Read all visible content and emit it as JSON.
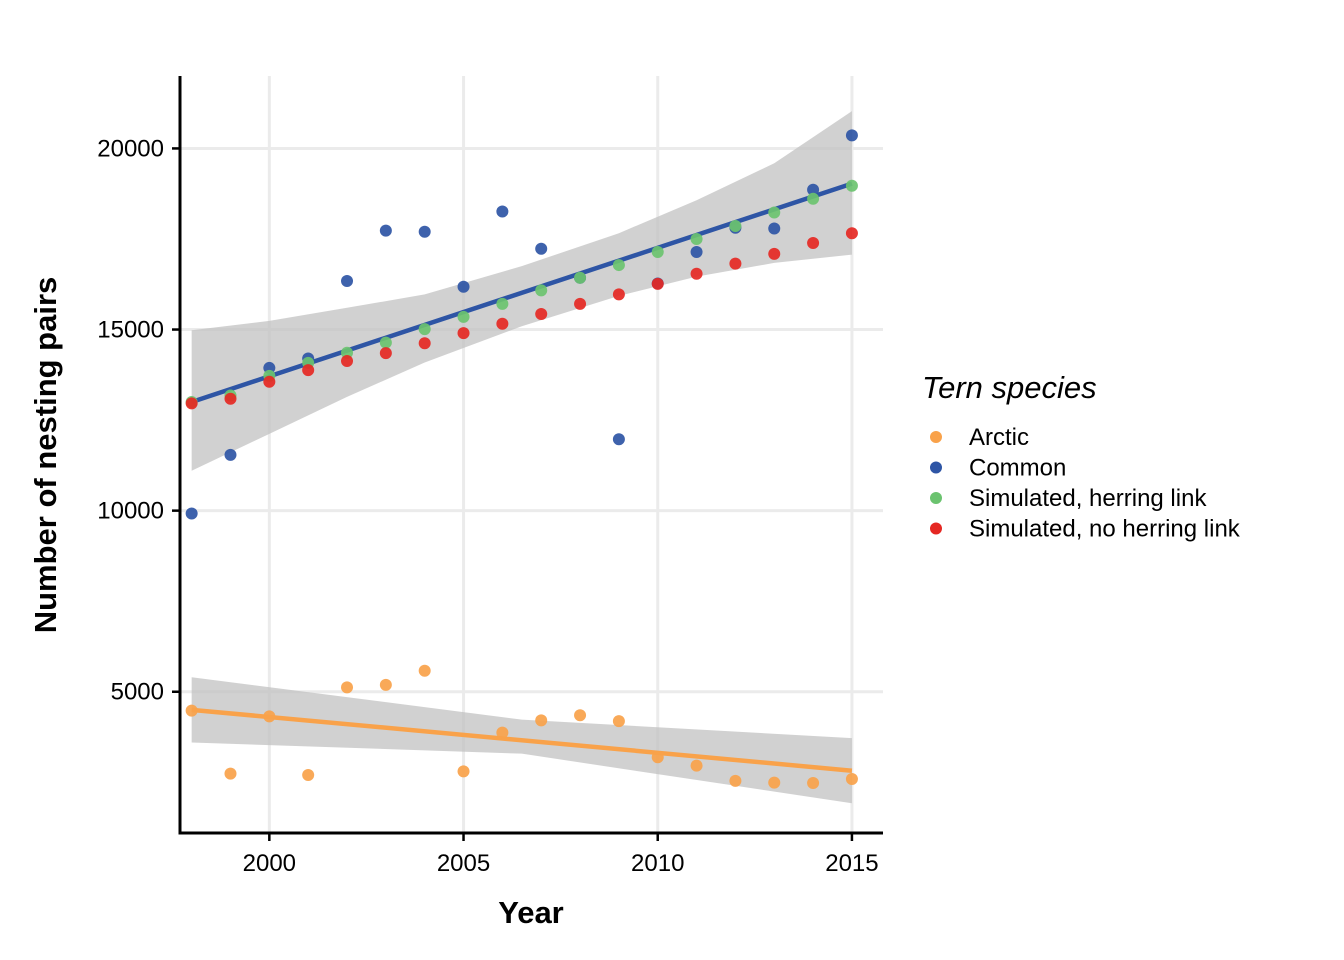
{
  "chart_data": {
    "type": "scatter",
    "xlabel": "Year",
    "ylabel": "Number of nesting pairs",
    "xlim": [
      1997.7,
      2015.8
    ],
    "ylim": [
      1100,
      22000
    ],
    "x_ticks": [
      2000,
      2005,
      2010,
      2015
    ],
    "y_ticks": [
      5000,
      10000,
      15000,
      20000
    ],
    "x_tick_labels": [
      "2000",
      "2005",
      "2010",
      "2015"
    ],
    "y_tick_labels": [
      "5000",
      "10000",
      "15000",
      "20000"
    ],
    "grid": true,
    "legend": {
      "title": "Tern species",
      "position": "right",
      "entries": [
        "Arctic",
        "Common",
        "Simulated, herring link",
        "Simulated, no herring link"
      ]
    },
    "series": [
      {
        "name": "Arctic",
        "color": "#F9A24A",
        "points": [
          [
            1998,
            4480
          ],
          [
            1999,
            2740
          ],
          [
            2000,
            4320
          ],
          [
            2001,
            2700
          ],
          [
            2002,
            5120
          ],
          [
            2003,
            5190
          ],
          [
            2004,
            5580
          ],
          [
            2005,
            2800
          ],
          [
            2006,
            3870
          ],
          [
            2007,
            4210
          ],
          [
            2008,
            4350
          ],
          [
            2009,
            4190
          ],
          [
            2010,
            3190
          ],
          [
            2011,
            2960
          ],
          [
            2012,
            2540
          ],
          [
            2013,
            2490
          ],
          [
            2014,
            2480
          ],
          [
            2015,
            2590
          ]
        ]
      },
      {
        "name": "Common",
        "color": "#2E55A5",
        "points": [
          [
            1998,
            9920
          ],
          [
            1999,
            11540
          ],
          [
            2000,
            13940
          ],
          [
            2001,
            14200
          ],
          [
            2002,
            16340
          ],
          [
            2003,
            17730
          ],
          [
            2004,
            17700
          ],
          [
            2005,
            16180
          ],
          [
            2006,
            18260
          ],
          [
            2007,
            17230
          ],
          [
            2008,
            16430
          ],
          [
            2009,
            11970
          ],
          [
            2010,
            16270
          ],
          [
            2011,
            17140
          ],
          [
            2012,
            17810
          ],
          [
            2013,
            17790
          ],
          [
            2014,
            18860
          ],
          [
            2015,
            20360
          ]
        ]
      },
      {
        "name": "Simulated, herring link",
        "color": "#6BC36F",
        "points": [
          [
            1998,
            13000
          ],
          [
            1999,
            13180
          ],
          [
            2000,
            13720
          ],
          [
            2001,
            14080
          ],
          [
            2002,
            14360
          ],
          [
            2003,
            14640
          ],
          [
            2004,
            15010
          ],
          [
            2005,
            15350
          ],
          [
            2006,
            15710
          ],
          [
            2007,
            16080
          ],
          [
            2008,
            16430
          ],
          [
            2009,
            16780
          ],
          [
            2010,
            17140
          ],
          [
            2011,
            17500
          ],
          [
            2012,
            17860
          ],
          [
            2013,
            18230
          ],
          [
            2014,
            18610
          ],
          [
            2015,
            18970
          ]
        ]
      },
      {
        "name": "Simulated, no herring link",
        "color": "#E52823",
        "points": [
          [
            1998,
            12960
          ],
          [
            1999,
            13090
          ],
          [
            2000,
            13560
          ],
          [
            2001,
            13880
          ],
          [
            2002,
            14130
          ],
          [
            2003,
            14350
          ],
          [
            2004,
            14620
          ],
          [
            2005,
            14900
          ],
          [
            2006,
            15160
          ],
          [
            2007,
            15430
          ],
          [
            2008,
            15710
          ],
          [
            2009,
            15970
          ],
          [
            2010,
            16260
          ],
          [
            2011,
            16540
          ],
          [
            2012,
            16820
          ],
          [
            2013,
            17090
          ],
          [
            2014,
            17390
          ],
          [
            2015,
            17660
          ]
        ]
      }
    ],
    "trend_lines": [
      {
        "series": "Arctic",
        "color": "#F9A24A",
        "start": [
          1998,
          4500
        ],
        "end": [
          2015,
          2820
        ],
        "band_upper": [
          [
            1998,
            5400
          ],
          [
            2006.5,
            4230
          ],
          [
            2015,
            3720
          ]
        ],
        "band_lower": [
          [
            1998,
            3600
          ],
          [
            2006.5,
            3290
          ],
          [
            2015,
            1920
          ]
        ]
      },
      {
        "series": "Common",
        "color": "#2E55A5",
        "start": [
          1998,
          13000
        ],
        "end": [
          2015,
          19030
        ],
        "band_upper": [
          [
            1998,
            14980
          ],
          [
            2000,
            15240
          ],
          [
            2002,
            15600
          ],
          [
            2004,
            15970
          ],
          [
            2006.5,
            16750
          ],
          [
            2009,
            17660
          ],
          [
            2011,
            18570
          ],
          [
            2013,
            19590
          ],
          [
            2015,
            21030
          ]
        ],
        "band_lower": [
          [
            1998,
            11100
          ],
          [
            2000,
            12120
          ],
          [
            2002,
            13140
          ],
          [
            2004,
            14090
          ],
          [
            2006.5,
            15090
          ],
          [
            2009,
            15930
          ],
          [
            2011,
            16460
          ],
          [
            2013,
            16840
          ],
          [
            2015,
            17070
          ]
        ]
      }
    ]
  }
}
